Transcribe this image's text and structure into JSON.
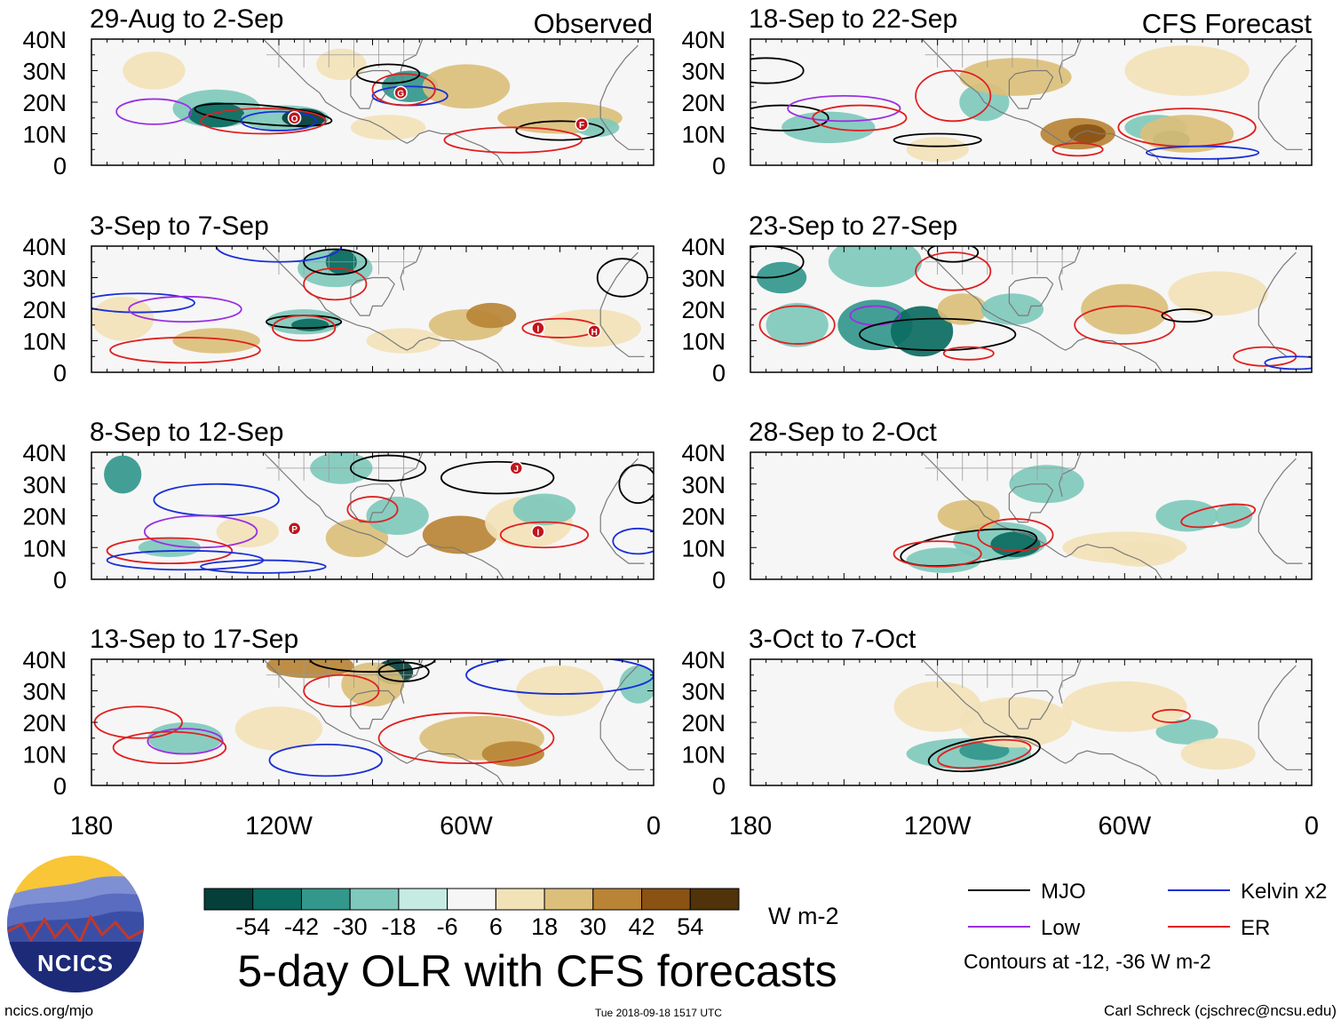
{
  "chart_data": {
    "type": "heatmap",
    "title": "5-day OLR with CFS forecasts",
    "units": "W m-2",
    "colorbar": {
      "tick_labels": [
        "-54",
        "-42",
        "-30",
        "-18",
        "-6",
        "6",
        "18",
        "30",
        "42",
        "54"
      ],
      "colors": [
        "#053f3a",
        "#0b6b61",
        "#33978c",
        "#7fc9bc",
        "#c5ebe3",
        "#f6f6f6",
        "#f2e2b8",
        "#dbbf7a",
        "#b98436",
        "#8a5213",
        "#50320b"
      ]
    },
    "x_axis": {
      "tick_labels": [
        "180",
        "120W",
        "60W",
        "0"
      ],
      "range_deg": [
        180,
        360
      ]
    },
    "y_axis": {
      "tick_labels": [
        "40N",
        "30N",
        "20N",
        "10N",
        "0"
      ],
      "range_deg": [
        0,
        40
      ]
    },
    "columns": [
      {
        "label": "Observed",
        "panels": [
          {
            "period": "29-Aug to 2-Sep"
          },
          {
            "period": "3-Sep to 7-Sep"
          },
          {
            "period": "8-Sep to 12-Sep"
          },
          {
            "period": "13-Sep to 17-Sep"
          }
        ]
      },
      {
        "label": "CFS Forecast",
        "panels": [
          {
            "period": "18-Sep to 22-Sep"
          },
          {
            "period": "23-Sep to 27-Sep"
          },
          {
            "period": "28-Sep to 2-Oct"
          },
          {
            "period": "3-Oct to 7-Oct"
          }
        ]
      }
    ],
    "legend": {
      "entries": [
        {
          "name": "MJO",
          "color": "#000000"
        },
        {
          "name": "Kelvin x2",
          "color": "#1a2fd6"
        },
        {
          "name": "Low",
          "color": "#9b30e0"
        },
        {
          "name": "ER",
          "color": "#e01f1f"
        }
      ],
      "note": "Contours at -12, -36 W m-2"
    },
    "storm_markers": {
      "obs_1": [
        "O",
        "G",
        "F"
      ],
      "obs_2": [
        "I",
        "H"
      ],
      "obs_3": [
        "J",
        "P",
        "I"
      ]
    }
  },
  "logo_text": "NCICS",
  "footer": {
    "left": "ncics.org/mjo",
    "center": "Tue 2018-09-18 1517 UTC",
    "right": "Carl Schreck (cjschrec@ncsu.edu)"
  }
}
